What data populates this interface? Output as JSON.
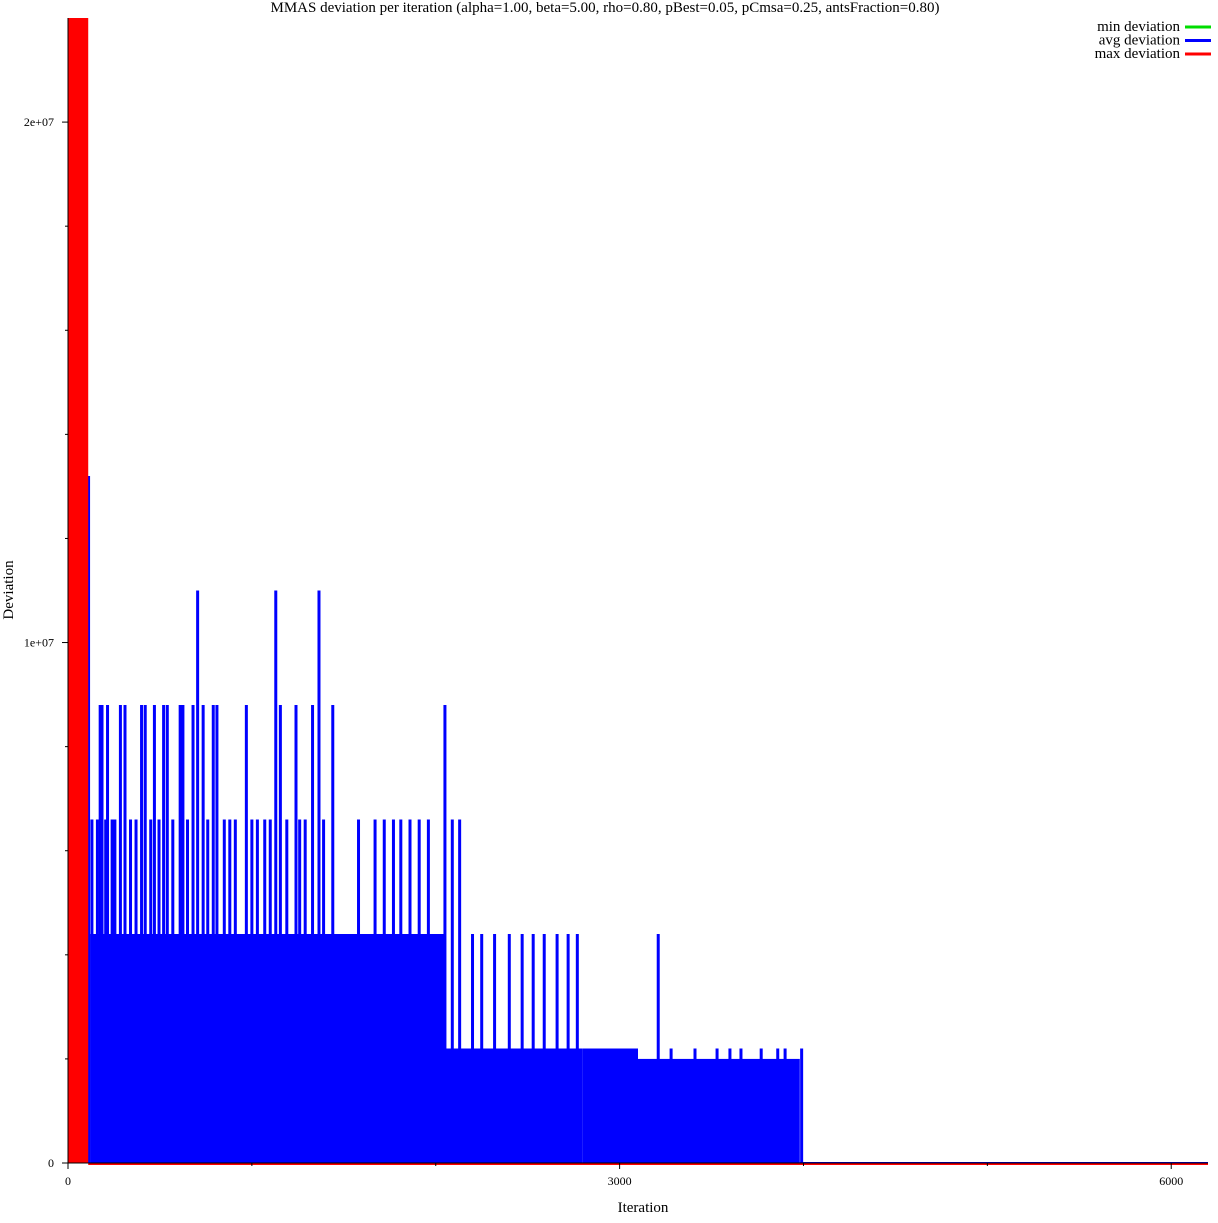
{
  "chart_data": {
    "type": "line",
    "title": "MMAS deviation per iteration (alpha=1.00, beta=5.00, rho=0.80, pBest=0.05, pCmsa=0.25, antsFraction=0.80)",
    "xlabel": "Iteration",
    "ylabel": "Deviation",
    "xlim": [
      0,
      6200
    ],
    "ylim": [
      0,
      22000000
    ],
    "x_ticks": [
      0,
      3000,
      6000
    ],
    "x_tick_labels": [
      "0",
      "3000",
      "6000"
    ],
    "x_minor_ticks": [
      1000,
      2000,
      4000,
      5000
    ],
    "y_ticks": [
      0,
      10000000,
      20000000
    ],
    "y_tick_labels": [
      "0",
      "1e+07",
      "2e+07"
    ],
    "y_minor_ticks": [
      2000000,
      4000000,
      6000000,
      8000000,
      12000000,
      14000000,
      16000000,
      18000000
    ],
    "grid": false,
    "legend_position": "top-right",
    "series": [
      {
        "name": "min deviation",
        "color": "#00dd00",
        "segments": [
          [
            0,
            0
          ],
          [
            6200,
            0
          ]
        ]
      },
      {
        "name": "avg deviation",
        "color": "#0000ff",
        "fill_bands": [
          {
            "x_start": 0,
            "x_end": 120,
            "top": 13200000
          },
          {
            "x_start": 120,
            "x_end": 2050,
            "top": 4400000
          },
          {
            "x_start": 2050,
            "x_end": 2800,
            "top": 2200000
          },
          {
            "x_start": 2800,
            "x_end": 3100,
            "top": 2200000
          },
          {
            "x_start": 3100,
            "x_end": 3980,
            "top": 2000000
          }
        ],
        "spikes": [
          {
            "x": 130,
            "y": 6600000
          },
          {
            "x": 160,
            "y": 6600000
          },
          {
            "x": 175,
            "y": 8800000
          },
          {
            "x": 185,
            "y": 8800000
          },
          {
            "x": 205,
            "y": 6600000
          },
          {
            "x": 215,
            "y": 8800000
          },
          {
            "x": 240,
            "y": 6600000
          },
          {
            "x": 255,
            "y": 6600000
          },
          {
            "x": 285,
            "y": 8800000
          },
          {
            "x": 310,
            "y": 8800000
          },
          {
            "x": 340,
            "y": 6600000
          },
          {
            "x": 370,
            "y": 6600000
          },
          {
            "x": 400,
            "y": 8800000
          },
          {
            "x": 420,
            "y": 8800000
          },
          {
            "x": 450,
            "y": 6600000
          },
          {
            "x": 470,
            "y": 8800000
          },
          {
            "x": 495,
            "y": 6600000
          },
          {
            "x": 520,
            "y": 8800000
          },
          {
            "x": 540,
            "y": 8800000
          },
          {
            "x": 570,
            "y": 6600000
          },
          {
            "x": 610,
            "y": 8800000
          },
          {
            "x": 625,
            "y": 8800000
          },
          {
            "x": 650,
            "y": 6600000
          },
          {
            "x": 680,
            "y": 8800000
          },
          {
            "x": 705,
            "y": 11000000
          },
          {
            "x": 735,
            "y": 8800000
          },
          {
            "x": 760,
            "y": 6600000
          },
          {
            "x": 790,
            "y": 8800000
          },
          {
            "x": 810,
            "y": 8800000
          },
          {
            "x": 850,
            "y": 6600000
          },
          {
            "x": 880,
            "y": 6600000
          },
          {
            "x": 910,
            "y": 6600000
          },
          {
            "x": 970,
            "y": 8800000
          },
          {
            "x": 1000,
            "y": 6600000
          },
          {
            "x": 1030,
            "y": 6600000
          },
          {
            "x": 1070,
            "y": 6600000
          },
          {
            "x": 1100,
            "y": 6600000
          },
          {
            "x": 1130,
            "y": 11000000
          },
          {
            "x": 1155,
            "y": 8800000
          },
          {
            "x": 1190,
            "y": 6600000
          },
          {
            "x": 1240,
            "y": 8800000
          },
          {
            "x": 1260,
            "y": 6600000
          },
          {
            "x": 1290,
            "y": 6600000
          },
          {
            "x": 1330,
            "y": 8800000
          },
          {
            "x": 1365,
            "y": 11000000
          },
          {
            "x": 1390,
            "y": 6600000
          },
          {
            "x": 1440,
            "y": 8800000
          },
          {
            "x": 1475,
            "y": 4400000
          },
          {
            "x": 1520,
            "y": 4400000
          },
          {
            "x": 1580,
            "y": 6600000
          },
          {
            "x": 1620,
            "y": 4400000
          },
          {
            "x": 1670,
            "y": 6600000
          },
          {
            "x": 1720,
            "y": 6600000
          },
          {
            "x": 1770,
            "y": 6600000
          },
          {
            "x": 1810,
            "y": 6600000
          },
          {
            "x": 1860,
            "y": 6600000
          },
          {
            "x": 1910,
            "y": 6600000
          },
          {
            "x": 1960,
            "y": 6600000
          },
          {
            "x": 2050,
            "y": 8800000
          },
          {
            "x": 2090,
            "y": 6600000
          },
          {
            "x": 2130,
            "y": 6600000
          },
          {
            "x": 2200,
            "y": 4400000
          },
          {
            "x": 2250,
            "y": 4400000
          },
          {
            "x": 2320,
            "y": 4400000
          },
          {
            "x": 2400,
            "y": 4400000
          },
          {
            "x": 2470,
            "y": 4400000
          },
          {
            "x": 2530,
            "y": 4400000
          },
          {
            "x": 2590,
            "y": 4400000
          },
          {
            "x": 2660,
            "y": 4400000
          },
          {
            "x": 2720,
            "y": 4400000
          },
          {
            "x": 2770,
            "y": 4400000
          },
          {
            "x": 3210,
            "y": 4400000
          },
          {
            "x": 3280,
            "y": 2200000
          },
          {
            "x": 3410,
            "y": 2200000
          },
          {
            "x": 3530,
            "y": 2200000
          },
          {
            "x": 3600,
            "y": 2200000
          },
          {
            "x": 3660,
            "y": 2200000
          },
          {
            "x": 3770,
            "y": 2200000
          },
          {
            "x": 3860,
            "y": 2200000
          },
          {
            "x": 3900,
            "y": 2200000
          },
          {
            "x": 3990,
            "y": 2200000
          }
        ],
        "baseline_after": [
          3980,
          6200
        ]
      },
      {
        "name": "max deviation",
        "color": "#ff0000",
        "fill_bands": [
          {
            "x_start": 0,
            "x_end": 110,
            "top": 22000000
          }
        ],
        "baseline_after": [
          110,
          6200
        ]
      }
    ]
  }
}
